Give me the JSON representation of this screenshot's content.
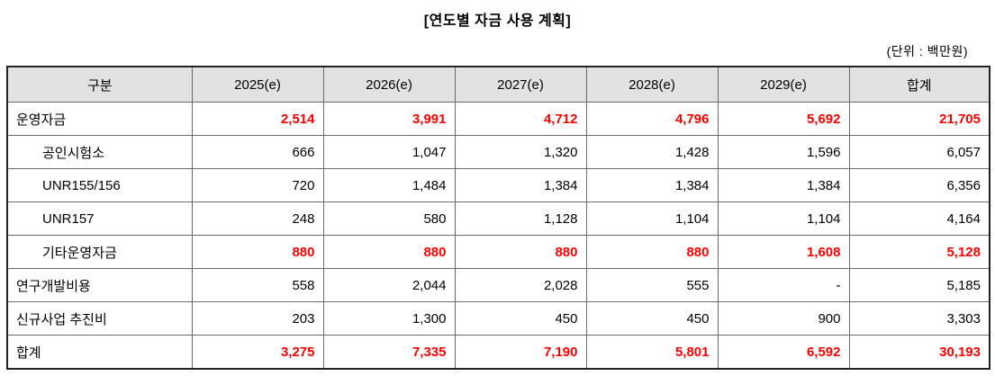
{
  "page": {
    "title": "[연도별 자금 사용 계획]",
    "unit_note": "(단위 : 백만원)"
  },
  "table": {
    "columns": [
      "구분",
      "2025(e)",
      "2026(e)",
      "2027(e)",
      "2028(e)",
      "2029(e)",
      "합계"
    ],
    "rows": [
      {
        "label": "운영자금",
        "indent": false,
        "highlight": true,
        "values": [
          "2,514",
          "3,991",
          "4,712",
          "4,796",
          "5,692",
          "21,705"
        ]
      },
      {
        "label": "공인시험소",
        "indent": true,
        "highlight": false,
        "values": [
          "666",
          "1,047",
          "1,320",
          "1,428",
          "1,596",
          "6,057"
        ]
      },
      {
        "label": "UNR155/156",
        "indent": true,
        "highlight": false,
        "values": [
          "720",
          "1,484",
          "1,384",
          "1,384",
          "1,384",
          "6,356"
        ]
      },
      {
        "label": "UNR157",
        "indent": true,
        "highlight": false,
        "values": [
          "248",
          "580",
          "1,128",
          "1,104",
          "1,104",
          "4,164"
        ]
      },
      {
        "label": "기타운영자금",
        "indent": true,
        "highlight": true,
        "values": [
          "880",
          "880",
          "880",
          "880",
          "1,608",
          "5,128"
        ]
      },
      {
        "label": "연구개발비용",
        "indent": false,
        "highlight": false,
        "values": [
          "558",
          "2,044",
          "2,028",
          "555",
          "-",
          "5,185"
        ]
      },
      {
        "label": "신규사업 추진비",
        "indent": false,
        "highlight": false,
        "values": [
          "203",
          "1,300",
          "450",
          "450",
          "900",
          "3,303"
        ]
      },
      {
        "label": "합계",
        "indent": false,
        "highlight": true,
        "values": [
          "3,275",
          "7,335",
          "7,190",
          "5,801",
          "6,592",
          "30,193"
        ]
      }
    ],
    "colors": {
      "highlight_value": "#ff0000",
      "header_bg": "#e2e2e2",
      "border_outer": "#222222",
      "border_inner": "#6b6b6b"
    }
  }
}
